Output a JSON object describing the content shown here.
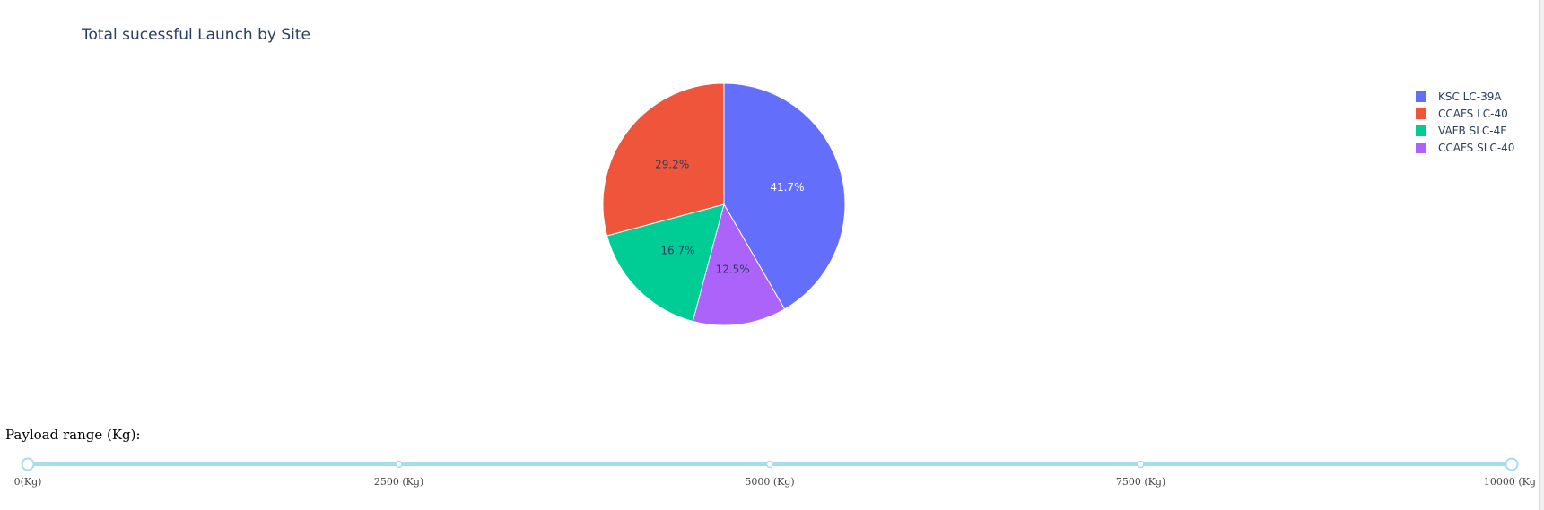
{
  "chart_data": {
    "type": "pie",
    "title": "Total sucessful Launch by Site",
    "labels": [
      "KSC LC-39A",
      "CCAFS LC-40",
      "VAFB SLC-4E",
      "CCAFS SLC-40"
    ],
    "values": [
      41.7,
      29.2,
      16.7,
      12.5
    ],
    "percent_labels": [
      "41.7%",
      "29.2%",
      "16.7%",
      "12.5%"
    ],
    "colors": [
      "#636efa",
      "#ef553b",
      "#00cc96",
      "#ab63fa"
    ],
    "slice_order": [
      0,
      3,
      2,
      1
    ],
    "legend_position": "top-right"
  },
  "slider": {
    "label": "Payload range (Kg):",
    "min": 0,
    "max": 10000,
    "range": [
      0,
      10000
    ],
    "marks": [
      {
        "value": 0,
        "label": "0(Kg)"
      },
      {
        "value": 2500,
        "label": "2500 (Kg)"
      },
      {
        "value": 5000,
        "label": "5000 (Kg)"
      },
      {
        "value": 7500,
        "label": "7500 (Kg)"
      },
      {
        "value": 10000,
        "label": "10000 (Kg)"
      }
    ],
    "track_color": "#a6dcf0",
    "handle_color": "#a6dcf0"
  }
}
